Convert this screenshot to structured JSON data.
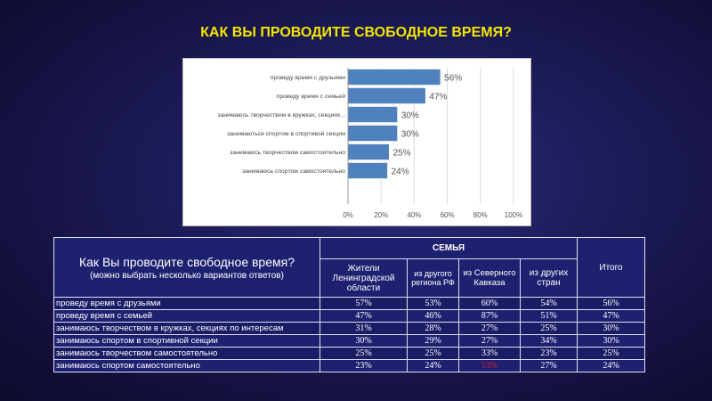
{
  "title": "КАК ВЫ ПРОВОДИТЕ СВОБОДНОЕ ВРЕМЯ?",
  "chart_data": {
    "type": "bar",
    "orientation": "horizontal",
    "categories": [
      "проведу время с друзьями",
      "проведу время с семьей",
      "занимаюсь творчеством в кружках, секциях...",
      "занимаються спортом в спортивой секции",
      "занимаюсь творчеством самостоятельно",
      "занимаюсь спортом самостоятельно"
    ],
    "values": [
      56,
      47,
      30,
      30,
      25,
      24
    ],
    "data_labels": [
      "56%",
      "47%",
      "30%",
      "30%",
      "25%",
      "24%"
    ],
    "xlim": [
      0,
      100
    ],
    "xticks": [
      "0%",
      "20%",
      "40%",
      "60%",
      "80%",
      "100%"
    ],
    "grid": true,
    "color": "#4f81bd"
  },
  "table": {
    "question": "Как Вы проводите свободное время?",
    "subtitle": "(можно выбрать несколько вариантов ответов)",
    "group_header": "СЕМЬЯ",
    "columns": [
      "Жители Ленинградской области",
      "из другого региона РФ",
      "из Северного Кавказа",
      "из других стран"
    ],
    "total_header": "Итого",
    "rows": [
      {
        "label": "проведу время с друзьями",
        "values": [
          "57%",
          "53%",
          "60%",
          "54%",
          "56%"
        ]
      },
      {
        "label": "проведу время с семьей",
        "values": [
          "47%",
          "46%",
          "87%",
          "51%",
          "47%"
        ]
      },
      {
        "label": " занимаюсь творчеством в кружках, секциях по интересам",
        "values": [
          "31%",
          "28%",
          "27%",
          "25%",
          "30%"
        ]
      },
      {
        "label": "занимаюсь спортом в спортивной секции",
        "values": [
          "30%",
          "29%",
          "27%",
          "34%",
          "30%"
        ]
      },
      {
        "label": "занимаюсь творчеством самостоятельно",
        "values": [
          "25%",
          "25%",
          "33%",
          "23%",
          "25%"
        ]
      },
      {
        "label": "занимаюсь спортом самостоятельно",
        "values": [
          "23%",
          "24%",
          "53%",
          "27%",
          "24%"
        ],
        "highlight": 2
      }
    ]
  }
}
